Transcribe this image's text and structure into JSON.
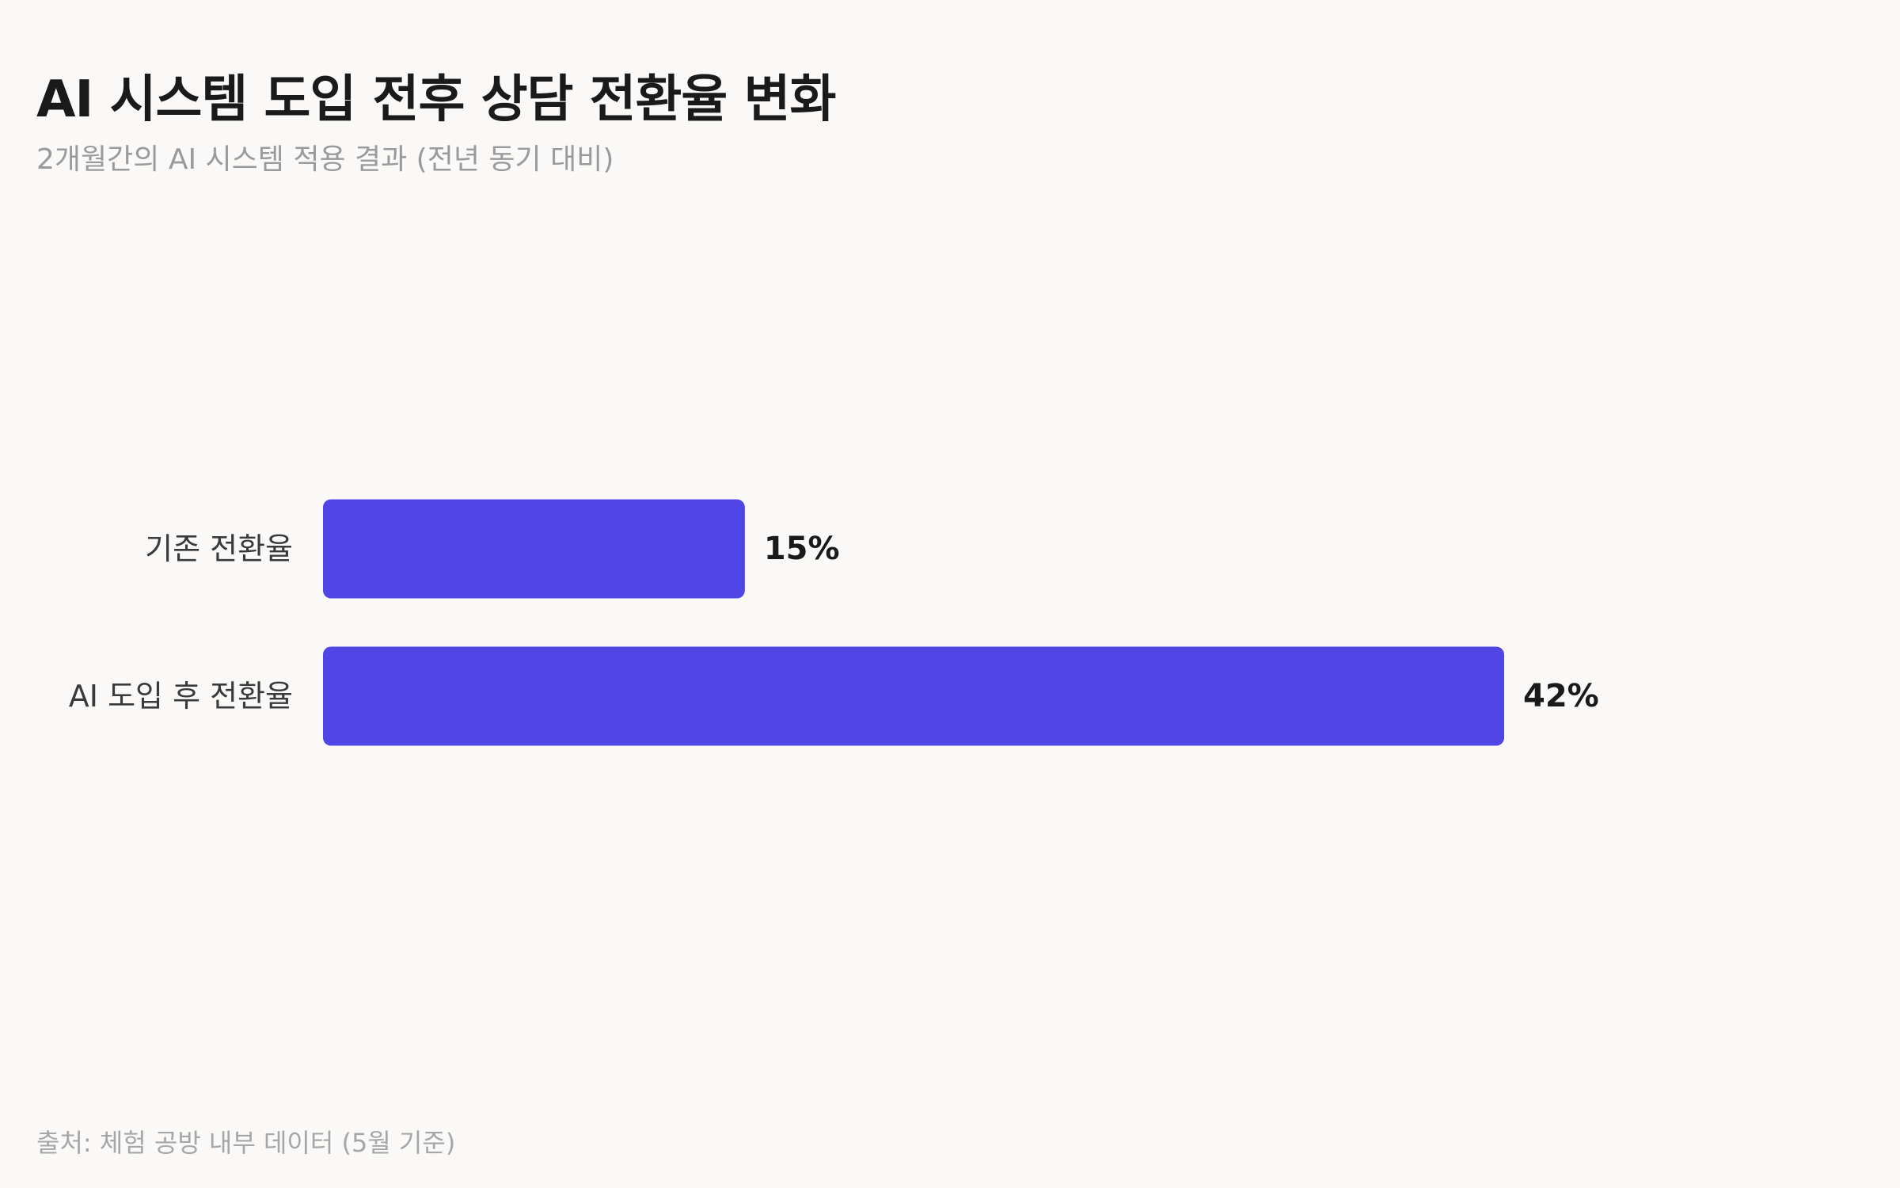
{
  "chart_data": {
    "type": "bar",
    "orientation": "horizontal",
    "title": "AI 시스템 도입 전후 상담 전환율 변화",
    "subtitle": "2개월간의 AI 시스템 적용 결과 (전년 동기 대비)",
    "categories": [
      "기존 전환율",
      "AI 도입 후 전환율"
    ],
    "values": [
      15,
      42
    ],
    "value_labels": [
      "15%",
      "42%"
    ],
    "xlim": [
      0,
      42
    ],
    "grid": false,
    "legend": "none",
    "bar_color": "#5046e5"
  },
  "source_note": "출처: 체험 공방 내부 데이터 (5월 기준)"
}
